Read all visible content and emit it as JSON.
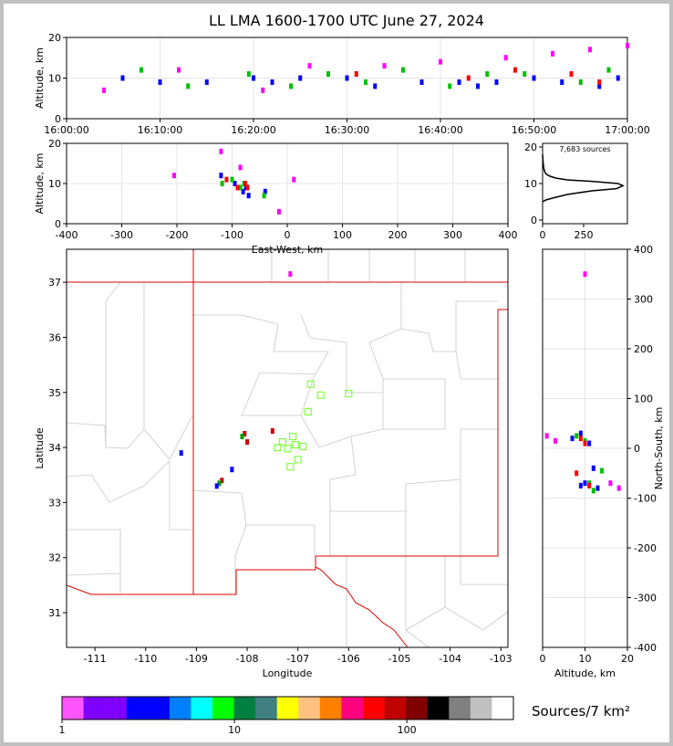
{
  "title": "LL LMA 1600-1700 UTC June 27, 2024",
  "chart_data": [
    {
      "type": "scatter",
      "ylabel": "Altitude, km",
      "xlim": [
        0,
        60
      ],
      "ylim": [
        0,
        20
      ],
      "xticks": [
        {
          "value": 0,
          "label": "16:00:00"
        },
        {
          "value": 10,
          "label": "16:10:00"
        },
        {
          "value": 20,
          "label": "16:20:00"
        },
        {
          "value": 30,
          "label": "16:30:00"
        },
        {
          "value": 40,
          "label": "16:40:00"
        },
        {
          "value": 50,
          "label": "16:50:00"
        },
        {
          "value": 60,
          "label": "17:00:00"
        }
      ],
      "yticks": [
        0,
        10,
        20
      ],
      "grid": true,
      "series": [
        {
          "color": "#0000ff",
          "x": [
            6,
            10,
            15,
            20,
            22,
            25,
            30,
            33,
            38,
            42,
            44,
            46,
            50,
            53,
            57,
            59
          ],
          "y": [
            10,
            9,
            9,
            10,
            9,
            10,
            10,
            8,
            9,
            9,
            8,
            9,
            10,
            9,
            8,
            10
          ]
        },
        {
          "color": "#00c000",
          "x": [
            8,
            13,
            19.5,
            24,
            28,
            32,
            36,
            41,
            45,
            49,
            55,
            58
          ],
          "y": [
            12,
            8,
            11,
            8,
            11,
            9,
            12,
            8,
            11,
            11,
            9,
            12
          ]
        },
        {
          "color": "#ff00ff",
          "x": [
            4,
            12,
            21,
            26,
            34,
            40,
            47,
            52,
            56,
            60
          ],
          "y": [
            7,
            12,
            7,
            13,
            13,
            14,
            15,
            16,
            17,
            18
          ]
        },
        {
          "color": "#ff0000",
          "x": [
            31,
            43,
            48,
            54,
            57
          ],
          "y": [
            11,
            10,
            12,
            11,
            9
          ]
        }
      ]
    },
    {
      "type": "scatter",
      "xlabel": "East-West, km",
      "ylabel": "Altitude, km",
      "xlim": [
        -400,
        400
      ],
      "ylim": [
        0,
        20
      ],
      "xticks": [
        -400,
        -300,
        -200,
        -100,
        0,
        100,
        200,
        300,
        400
      ],
      "yticks": [
        0,
        10,
        20
      ],
      "grid": true,
      "series": [
        {
          "color": "#0000ff",
          "x": [
            -120,
            -95,
            -80,
            -70,
            -75,
            -40
          ],
          "y": [
            12,
            10,
            8,
            7,
            9,
            8
          ]
        },
        {
          "color": "#00c000",
          "x": [
            -118,
            -100,
            -85,
            -78,
            -42
          ],
          "y": [
            10,
            11,
            9,
            10,
            7
          ]
        },
        {
          "color": "#ff0000",
          "x": [
            -110,
            -90,
            -76,
            -72
          ],
          "y": [
            11,
            9,
            10,
            9
          ]
        },
        {
          "color": "#ff00ff",
          "x": [
            -205,
            -120,
            -85,
            -15,
            12
          ],
          "y": [
            12,
            18,
            14,
            3,
            11
          ]
        }
      ]
    },
    {
      "type": "line",
      "annotation": "7,683 sources",
      "xlim": [
        0,
        517
      ],
      "ylim": [
        -1,
        21
      ],
      "xticks": [
        0,
        250
      ],
      "yticks": [
        0,
        10,
        20
      ],
      "series": [
        {
          "color": "#000000",
          "x": [
            0,
            20,
            60,
            150,
            300,
            450,
            490,
            460,
            300,
            150,
            80,
            45,
            25,
            15,
            8,
            5,
            3,
            1,
            0
          ],
          "y": [
            5,
            5.5,
            6,
            7,
            8,
            8.6,
            9.4,
            10,
            10.6,
            11,
            11.5,
            12,
            12.5,
            13,
            14,
            15,
            16,
            17,
            18
          ]
        }
      ]
    },
    {
      "type": "scatter",
      "xlabel": "Longitude",
      "ylabel": "Latitude",
      "xlim": [
        -111.56,
        -102.86
      ],
      "ylim": [
        30.37,
        37.6
      ],
      "xticks": [
        -111,
        -110,
        -109,
        -108,
        -107,
        -106,
        -105,
        -104,
        -103
      ],
      "yticks": [
        31,
        32,
        33,
        34,
        35,
        36,
        37
      ],
      "grid": false,
      "series": [
        {
          "color": "#cc0000",
          "x": [
            -108.05,
            -108.0,
            -108.5,
            -107.5
          ],
          "y": [
            34.25,
            34.1,
            33.4,
            34.3
          ]
        },
        {
          "color": "#00a000",
          "x": [
            -108.1,
            -108.55
          ],
          "y": [
            34.2,
            33.35
          ]
        },
        {
          "color": "#0000ff",
          "x": [
            -108.6,
            -109.3,
            -108.3
          ],
          "y": [
            33.3,
            33.9,
            33.6
          ]
        },
        {
          "color": "#ff00ff",
          "x": [
            -107.15
          ],
          "y": [
            37.15
          ]
        },
        {
          "color": "#80ff40",
          "marker": "square-open",
          "x": [
            -106.75,
            -106.55,
            -106.0,
            -106.8,
            -107.3,
            -107.1,
            -107.05,
            -106.9,
            -107.2,
            -107.15,
            -107.0,
            -107.4
          ],
          "y": [
            35.15,
            34.95,
            34.98,
            34.65,
            34.1,
            34.2,
            34.05,
            34.02,
            33.98,
            33.65,
            33.78,
            34.0
          ]
        }
      ]
    },
    {
      "type": "scatter",
      "xlabel": "Altitude, km",
      "ylabel": "North-South, km",
      "xlim": [
        0,
        20
      ],
      "ylim": [
        -400,
        400
      ],
      "xticks": [
        0,
        10,
        20
      ],
      "yticks": [
        -400,
        -300,
        -200,
        -100,
        0,
        100,
        200,
        300,
        400
      ],
      "grid": true,
      "series": [
        {
          "color": "#0000ff",
          "x": [
            7,
            9,
            11,
            12,
            9,
            13,
            10
          ],
          "y": [
            20,
            30,
            10,
            -40,
            -75,
            -80,
            -70
          ]
        },
        {
          "color": "#00c000",
          "x": [
            8,
            10,
            14,
            11,
            12
          ],
          "y": [
            25,
            15,
            -45,
            -70,
            -85
          ]
        },
        {
          "color": "#ff0000",
          "x": [
            9,
            10,
            11,
            8
          ],
          "y": [
            20,
            10,
            -75,
            -50
          ]
        },
        {
          "color": "#ff00ff",
          "x": [
            1,
            3,
            16,
            18,
            10
          ],
          "y": [
            25,
            15,
            -70,
            -80,
            350
          ]
        }
      ]
    },
    {
      "type": "colorbar",
      "label": "Sources/7 km²",
      "log": true,
      "xlim": [
        1,
        415
      ],
      "xticks": [
        1,
        10,
        100
      ],
      "colors": [
        "#ff55ff",
        "#8000ff",
        "#8000ff",
        "#0000ff",
        "#0000ff",
        "#0080ff",
        "#00ffff",
        "#00ff00",
        "#008040",
        "#408080",
        "#ffff00",
        "#ffc080",
        "#ff8000",
        "#ff0080",
        "#ff0000",
        "#c00000",
        "#800000",
        "#000000",
        "#808080",
        "#c0c0c0",
        "#ffffff"
      ]
    }
  ]
}
